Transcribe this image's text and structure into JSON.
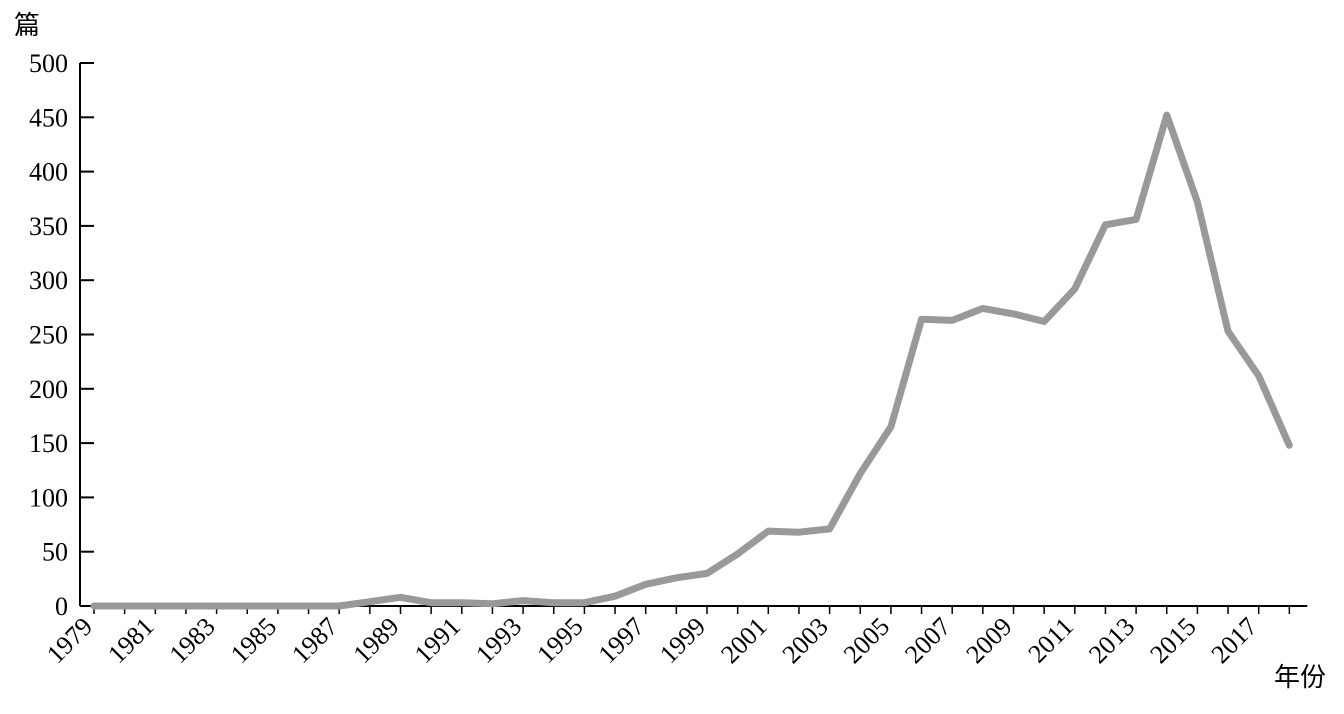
{
  "chart_data": {
    "type": "line",
    "ylabel": "篇",
    "xlabel": "年份",
    "ylim": [
      0,
      500
    ],
    "y_ticks": [
      0,
      50,
      100,
      150,
      200,
      250,
      300,
      350,
      400,
      450,
      500
    ],
    "x_tick_labels": [
      "1979",
      "1981",
      "1983",
      "1985",
      "1987",
      "1989",
      "1991",
      "1993",
      "1995",
      "1997",
      "1999",
      "2001",
      "2003",
      "2005",
      "2007",
      "2009",
      "2011",
      "2013",
      "2015",
      "2017"
    ],
    "x": [
      1979,
      1980,
      1981,
      1982,
      1983,
      1984,
      1985,
      1986,
      1987,
      1988,
      1989,
      1990,
      1991,
      1992,
      1993,
      1994,
      1995,
      1996,
      1997,
      1998,
      1999,
      2000,
      2001,
      2002,
      2003,
      2004,
      2005,
      2006,
      2007,
      2008,
      2009,
      2010,
      2011,
      2012,
      2013,
      2014,
      2015,
      2016,
      2017,
      2018
    ],
    "series": [
      {
        "values": [
          0,
          0,
          0,
          0,
          0,
          0,
          0,
          0,
          0,
          4,
          8,
          3,
          3,
          2,
          5,
          3,
          3,
          9,
          20,
          26,
          30,
          48,
          69,
          68,
          71,
          122,
          165,
          264,
          263,
          274,
          269,
          262,
          292,
          351,
          356,
          452,
          372,
          253,
          212,
          148
        ],
        "color": "#999999"
      }
    ],
    "grid": false,
    "legend": "none"
  }
}
